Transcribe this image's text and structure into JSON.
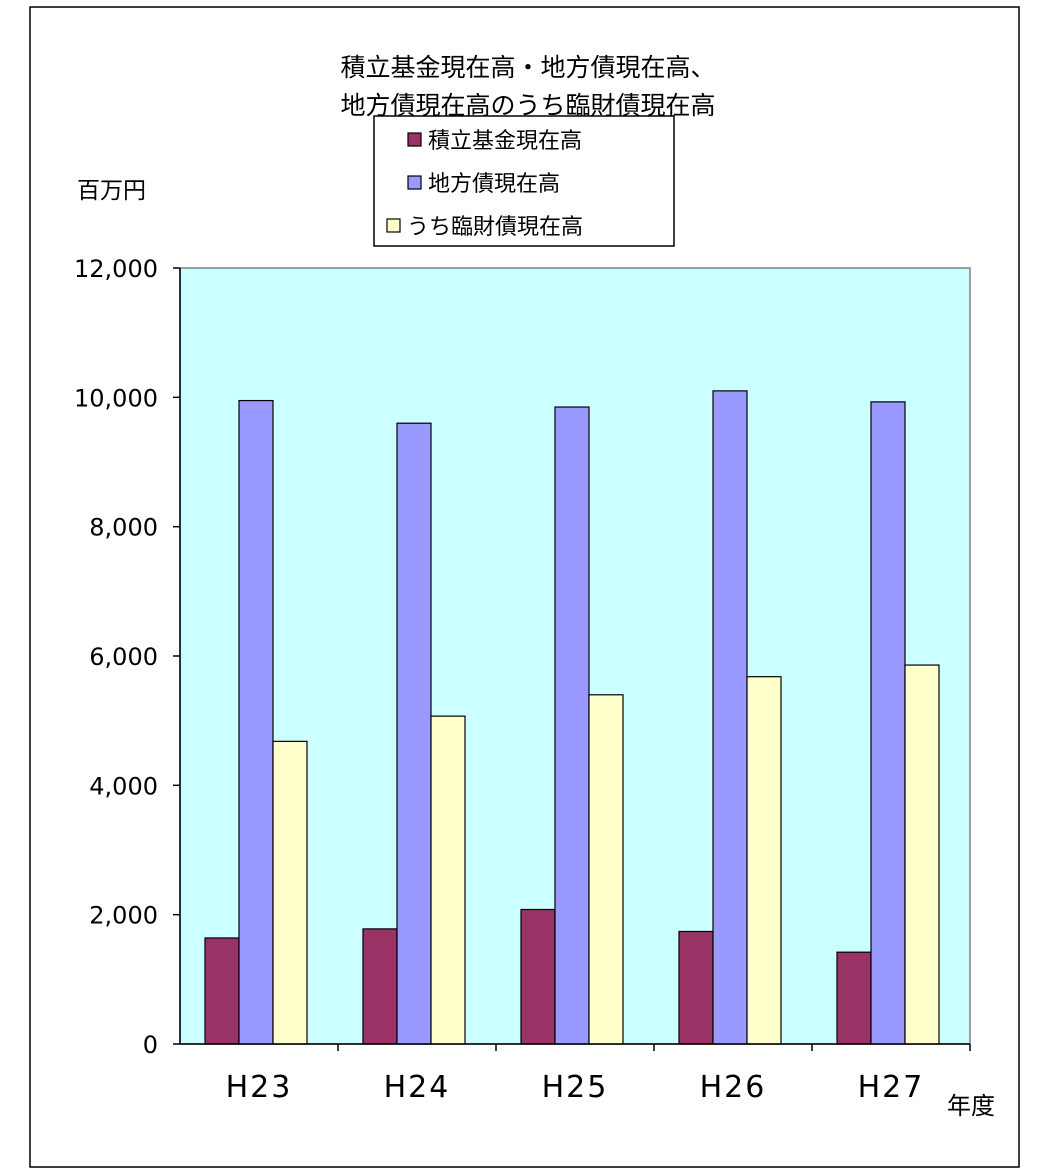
{
  "chart_data": {
    "type": "bar",
    "title_lines": [
      "積立基金現在高・地方債現在高、",
      "地方債現在高のうち臨財債現在高"
    ],
    "ylabel": "百万円",
    "xlabel": "年度",
    "categories": [
      "H23",
      "H24",
      "H25",
      "H26",
      "H27"
    ],
    "yticks": [
      "0",
      "2,000",
      "4,000",
      "6,000",
      "8,000",
      "10,000",
      "12,000"
    ],
    "ylim": [
      0,
      12000
    ],
    "grid": false,
    "legend_position": "top-center",
    "plot_background": "#ccffff",
    "series": [
      {
        "name": "積立基金現在高",
        "color": "#993366",
        "values": [
          1640,
          1780,
          2080,
          1740,
          1420
        ]
      },
      {
        "name": "地方債現在高",
        "color": "#9999ff",
        "values": [
          9950,
          9600,
          9850,
          10100,
          9930
        ]
      },
      {
        "name": "うち臨財債現在高",
        "color": "#ffffcc",
        "values": [
          4680,
          5070,
          5400,
          5680,
          5860
        ]
      }
    ]
  }
}
